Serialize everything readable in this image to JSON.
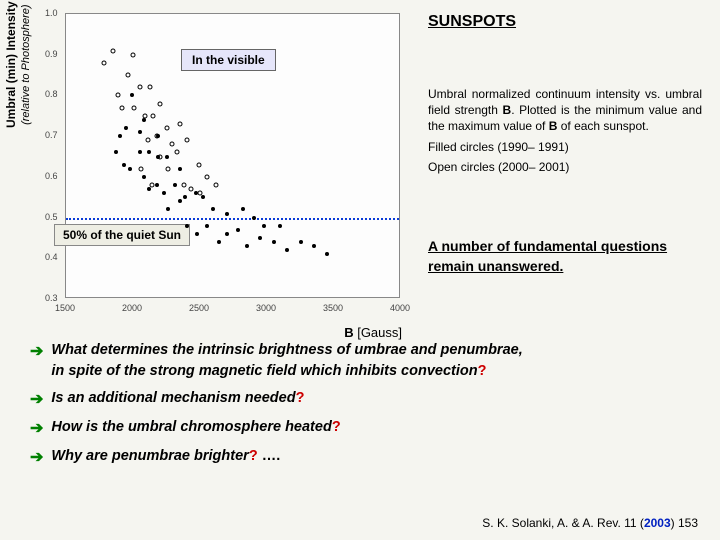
{
  "title": "SUNSPOTS",
  "visible_label": "In the visible",
  "y_axis": {
    "main": "Umbral (min)  Intensity",
    "sub": "(relative to Photosphere)"
  },
  "x_axis": {
    "label": "B",
    "unit": "[Gauss]"
  },
  "fifty_label": "50% of the quiet Sun",
  "desc": {
    "p1a": "Umbral normalized continuum intensity vs. umbral field strength ",
    "p1b": "B",
    "p1c": ". Plotted is the minimum value and the maximum value of ",
    "p1d": "B",
    "p1e": " of each sunspot.",
    "p2": "Filled circles (1990– 1991)",
    "p3": "Open circles (2000– 2001)"
  },
  "answer": "A number of fundamental questions remain unanswered.",
  "questions": {
    "q1a": "What determines the intrinsic brightness of umbrae and penumbrae,",
    "q1b": "in spite of the strong magnetic field which inhibits convection",
    "q2": "Is an additional mechanism needed",
    "q3": "How is the umbral chromosphere heated",
    "q4": " Why are penumbrae brighter",
    "q4_tail": " …."
  },
  "citation": {
    "author": "S. K. Solanki,    A. & A. Rev. 11 (",
    "year": "2003",
    "page": ") 153"
  },
  "chart": {
    "xlim": [
      1500,
      4000
    ],
    "ylim": [
      0.3,
      1.0
    ],
    "xtick_step": 500,
    "ytick_step": 0.1,
    "bg_color": "#fdfdfd",
    "dashed_y": 0.5,
    "dashed_color": "#0a3cd8",
    "filled": [
      [
        1870,
        0.66
      ],
      [
        1900,
        0.7
      ],
      [
        1930,
        0.63
      ],
      [
        1950,
        0.72
      ],
      [
        1990,
        0.8
      ],
      [
        1980,
        0.62
      ],
      [
        2050,
        0.66
      ],
      [
        2050,
        0.71
      ],
      [
        2080,
        0.6
      ],
      [
        2080,
        0.74
      ],
      [
        2120,
        0.57
      ],
      [
        2120,
        0.66
      ],
      [
        2180,
        0.58
      ],
      [
        2190,
        0.65
      ],
      [
        2190,
        0.7
      ],
      [
        2230,
        0.56
      ],
      [
        2250,
        0.65
      ],
      [
        2260,
        0.52
      ],
      [
        2310,
        0.58
      ],
      [
        2350,
        0.54
      ],
      [
        2350,
        0.62
      ],
      [
        2390,
        0.55
      ],
      [
        2400,
        0.48
      ],
      [
        2470,
        0.56
      ],
      [
        2480,
        0.46
      ],
      [
        2520,
        0.55
      ],
      [
        2550,
        0.48
      ],
      [
        2600,
        0.52
      ],
      [
        2640,
        0.44
      ],
      [
        2700,
        0.51
      ],
      [
        2700,
        0.46
      ],
      [
        2780,
        0.47
      ],
      [
        2820,
        0.52
      ],
      [
        2850,
        0.43
      ],
      [
        2900,
        0.5
      ],
      [
        2950,
        0.45
      ],
      [
        2980,
        0.48
      ],
      [
        3050,
        0.44
      ],
      [
        3100,
        0.48
      ],
      [
        3150,
        0.42
      ],
      [
        3250,
        0.44
      ],
      [
        3350,
        0.43
      ],
      [
        3450,
        0.41
      ]
    ],
    "open": [
      [
        1780,
        0.88
      ],
      [
        1850,
        0.91
      ],
      [
        1890,
        0.8
      ],
      [
        1920,
        0.77
      ],
      [
        1960,
        0.85
      ],
      [
        2000,
        0.9
      ],
      [
        2010,
        0.77
      ],
      [
        2050,
        0.82
      ],
      [
        2060,
        0.62
      ],
      [
        2090,
        0.75
      ],
      [
        2110,
        0.69
      ],
      [
        2130,
        0.82
      ],
      [
        2140,
        0.58
      ],
      [
        2150,
        0.75
      ],
      [
        2180,
        0.7
      ],
      [
        2200,
        0.78
      ],
      [
        2200,
        0.65
      ],
      [
        2250,
        0.72
      ],
      [
        2260,
        0.62
      ],
      [
        2290,
        0.68
      ],
      [
        2330,
        0.66
      ],
      [
        2350,
        0.73
      ],
      [
        2380,
        0.58
      ],
      [
        2400,
        0.69
      ],
      [
        2430,
        0.57
      ],
      [
        2490,
        0.63
      ],
      [
        2500,
        0.56
      ],
      [
        2550,
        0.6
      ],
      [
        2620,
        0.58
      ]
    ]
  }
}
